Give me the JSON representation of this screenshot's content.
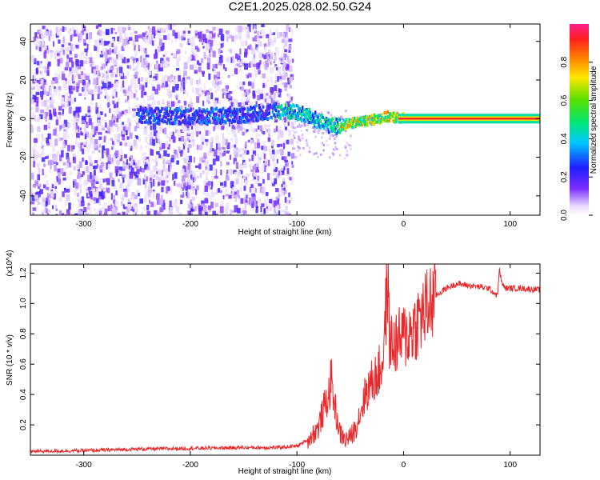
{
  "title": "C2E1.2025.028.02.50.G24",
  "colors": {
    "line": "#e8282a",
    "axis": "#000000",
    "background": "#ffffff",
    "spectrogram_low": "#e6d6ff",
    "spectrogram_mid": "#6a1fe0",
    "spectrogram_high": "#ff1f1f"
  },
  "chart_data": [
    {
      "type": "heatmap",
      "xlabel": "Height of straight line (km)",
      "ylabel": "Frequency (Hz)",
      "xlim": [
        -350,
        128
      ],
      "ylim": [
        -50,
        49
      ],
      "xticks": [
        -300,
        -200,
        -100,
        0,
        100
      ],
      "yticks": [
        -40,
        -20,
        0,
        20,
        40
      ],
      "colorbar": {
        "label": "Normalized spectral amplitude",
        "range": [
          0,
          1
        ],
        "ticks": [
          0.0,
          0.2,
          0.4,
          0.6,
          0.8
        ],
        "colormap": "rainbow (white/violet → blue → cyan → green → yellow → red → magenta)"
      },
      "description_of_content": [
        {
          "x_range": [
            -350,
            -105
          ],
          "freq_range": [
            -50,
            49
          ],
          "level": 0.1
        },
        {
          "x_range": [
            -250,
            -120
          ],
          "freq_range": [
            -3,
            3
          ],
          "level": 0.3
        },
        {
          "x_range": [
            -110,
            -60
          ],
          "freq_range": [
            -8,
            6
          ],
          "level": 0.45
        },
        {
          "x_range": [
            -60,
            -10
          ],
          "freq_range": [
            -4,
            3
          ],
          "level": 0.7
        },
        {
          "x_range": [
            0,
            128
          ],
          "freq_range": [
            -1,
            1
          ],
          "level": 0.95
        }
      ],
      "ridge": {
        "x": [
          -250,
          -200,
          -150,
          -120,
          -100,
          -85,
          -75,
          -65,
          -55,
          -45,
          -35,
          -25,
          -15,
          -5,
          0,
          50,
          128
        ],
        "freq": [
          2,
          1,
          2,
          4,
          3,
          0,
          -3,
          -4,
          -3,
          -2,
          -1,
          0,
          1,
          0.5,
          0,
          0,
          0
        ]
      },
      "grid": false
    },
    {
      "type": "line",
      "xlabel": "Height of straight line (km)",
      "ylabel": "SNR (10 * v/v)",
      "yscale_note": "(x10^4)",
      "xlim": [
        -350,
        128
      ],
      "ylim": [
        0.0,
        1.26
      ],
      "xticks": [
        -300,
        -200,
        -100,
        0,
        100
      ],
      "yticks": [
        0.2,
        0.4,
        0.6,
        0.8,
        1.0,
        1.2
      ],
      "grid": false,
      "series": [
        {
          "x": [
            -350,
            -300,
            -250,
            -200,
            -150,
            -120,
            -100,
            -90,
            -80,
            -75,
            -70,
            -68,
            -65,
            -60,
            -55,
            -50,
            -45,
            -40,
            -35,
            -30,
            -25,
            -20,
            -17,
            -15,
            -13,
            -10,
            -5,
            0,
            5,
            10,
            15,
            20,
            25,
            30,
            40,
            50,
            60,
            70,
            80,
            88,
            90,
            92,
            95,
            100,
            110,
            128
          ],
          "y": [
            0.025,
            0.03,
            0.04,
            0.045,
            0.05,
            0.05,
            0.06,
            0.1,
            0.18,
            0.3,
            0.4,
            0.5,
            0.35,
            0.15,
            0.1,
            0.12,
            0.18,
            0.3,
            0.42,
            0.48,
            0.52,
            0.6,
            0.9,
            1.15,
            0.75,
            0.72,
            0.75,
            0.78,
            0.8,
            0.85,
            0.9,
            0.95,
            1.0,
            1.05,
            1.1,
            1.13,
            1.12,
            1.11,
            1.1,
            1.05,
            1.22,
            1.14,
            1.1,
            1.1,
            1.1,
            1.09
          ]
        }
      ]
    }
  ]
}
